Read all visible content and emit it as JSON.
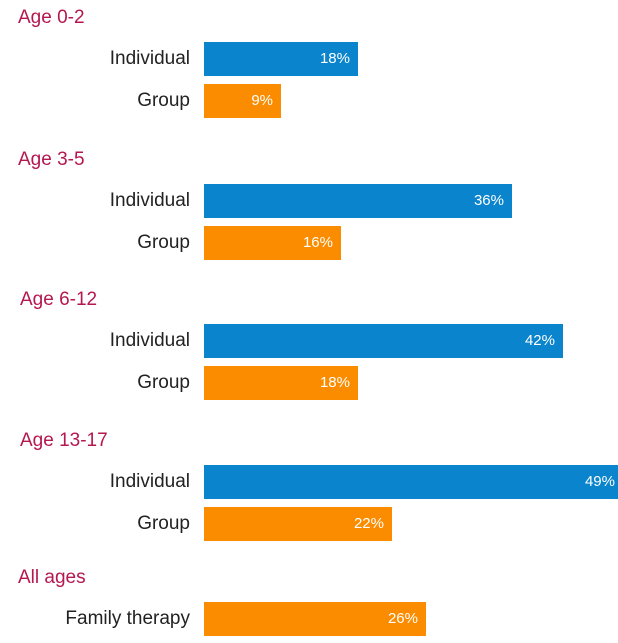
{
  "colors": {
    "individual": "#0a84cc",
    "group": "#fb8c00",
    "family": "#fb8c00",
    "heading": "#b5174f"
  },
  "chart_data": {
    "type": "bar",
    "orientation": "horizontal",
    "title": "",
    "xlim": [
      0,
      50
    ],
    "groups": [
      {
        "label": "Age 0-2",
        "rows": [
          {
            "label": "Individual",
            "value": 18,
            "display": "18%",
            "kind": "individual"
          },
          {
            "label": "Group",
            "value": 9,
            "display": "9%",
            "kind": "group"
          }
        ]
      },
      {
        "label": "Age 3-5",
        "rows": [
          {
            "label": "Individual",
            "value": 36,
            "display": "36%",
            "kind": "individual"
          },
          {
            "label": "Group",
            "value": 16,
            "display": "16%",
            "kind": "group"
          }
        ]
      },
      {
        "label": "Age 6-12",
        "rows": [
          {
            "label": "Individual",
            "value": 42,
            "display": "42%",
            "kind": "individual"
          },
          {
            "label": "Group",
            "value": 18,
            "display": "18%",
            "kind": "group"
          }
        ]
      },
      {
        "label": "Age 13-17",
        "rows": [
          {
            "label": "Individual",
            "value": 49,
            "display": "49%",
            "kind": "individual"
          },
          {
            "label": "Group",
            "value": 22,
            "display": "22%",
            "kind": "group"
          }
        ]
      },
      {
        "label": "All ages",
        "rows": [
          {
            "label": "Family therapy",
            "value": 26,
            "display": "26%",
            "kind": "family"
          }
        ]
      }
    ]
  }
}
